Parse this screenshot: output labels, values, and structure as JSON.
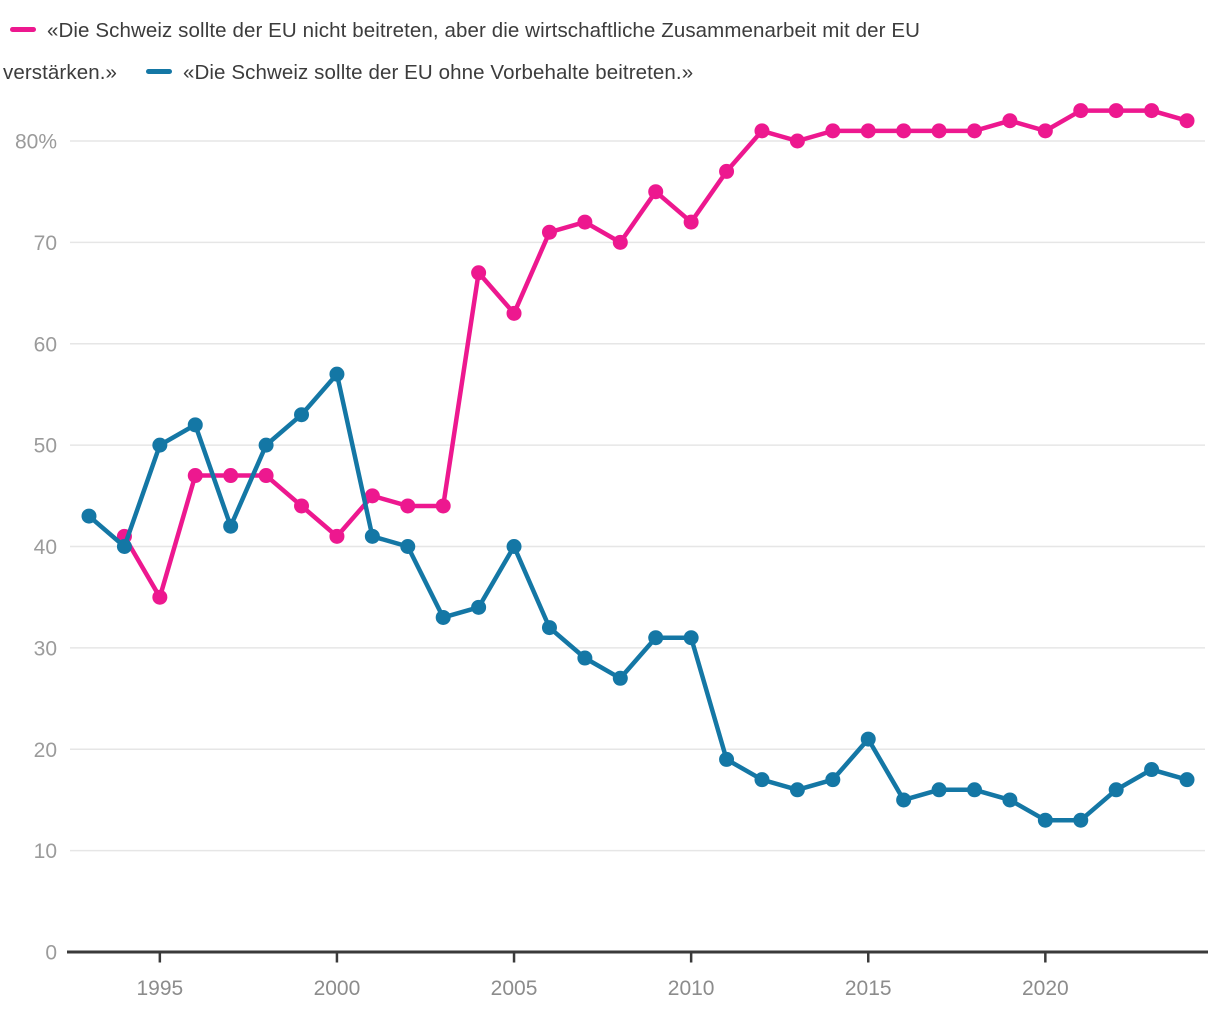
{
  "legend": {
    "pink_label_line1": "«Die Schweiz sollte der EU nicht beitreten, aber die wirtschaftliche Zusammenarbeit mit der EU",
    "pink_label_line2": "verstärken.»",
    "blue_label": "«Die Schweiz sollte der EU ohne Vorbehalte beitreten.»"
  },
  "colors": {
    "pink": "#ed188f",
    "blue": "#1477a5",
    "grid": "#e6e6e6",
    "axis": "#3a3a3a",
    "y_tick_label": "#9b9b9b",
    "x_tick_label": "#8c8c8c",
    "legend_text": "#3c3c3c"
  },
  "chart_data": {
    "type": "line",
    "title": "",
    "x": [
      1993,
      1994,
      1995,
      1996,
      1997,
      1998,
      1999,
      2000,
      2001,
      2002,
      2003,
      2004,
      2005,
      2006,
      2007,
      2008,
      2009,
      2010,
      2011,
      2012,
      2013,
      2014,
      2015,
      2016,
      2017,
      2018,
      2019,
      2020,
      2021,
      2022,
      2023,
      2024
    ],
    "x_ticks": [
      1995,
      2000,
      2005,
      2010,
      2015,
      2020
    ],
    "x_tick_labels": [
      "1995",
      "2000",
      "2005",
      "2010",
      "2015",
      "2020"
    ],
    "y_ticks": [
      0,
      10,
      20,
      30,
      40,
      50,
      60,
      70,
      80
    ],
    "y_tick_labels": [
      "0",
      "10",
      "20",
      "30",
      "40",
      "50",
      "60",
      "70",
      "80%"
    ],
    "ylim": [
      0,
      85
    ],
    "grid": "horizontal",
    "legend_position": "top",
    "marker": "circle",
    "series": [
      {
        "name": "«Die Schweiz sollte der EU nicht beitreten, aber die wirtschaftliche Zusammenarbeit mit der EU verstärken.»",
        "color": "#ed188f",
        "values": [
          null,
          41,
          35,
          47,
          47,
          47,
          44,
          41,
          45,
          44,
          44,
          67,
          63,
          71,
          72,
          70,
          75,
          72,
          77,
          81,
          80,
          81,
          81,
          81,
          81,
          81,
          82,
          81,
          83,
          83,
          83,
          82
        ]
      },
      {
        "name": "«Die Schweiz sollte der EU ohne Vorbehalte beitreten.»",
        "color": "#1477a5",
        "values": [
          43,
          40,
          50,
          52,
          42,
          50,
          53,
          57,
          41,
          40,
          33,
          34,
          40,
          32,
          29,
          27,
          31,
          31,
          19,
          17,
          16,
          17,
          21,
          15,
          16,
          16,
          15,
          13,
          13,
          16,
          18,
          17
        ]
      }
    ]
  }
}
